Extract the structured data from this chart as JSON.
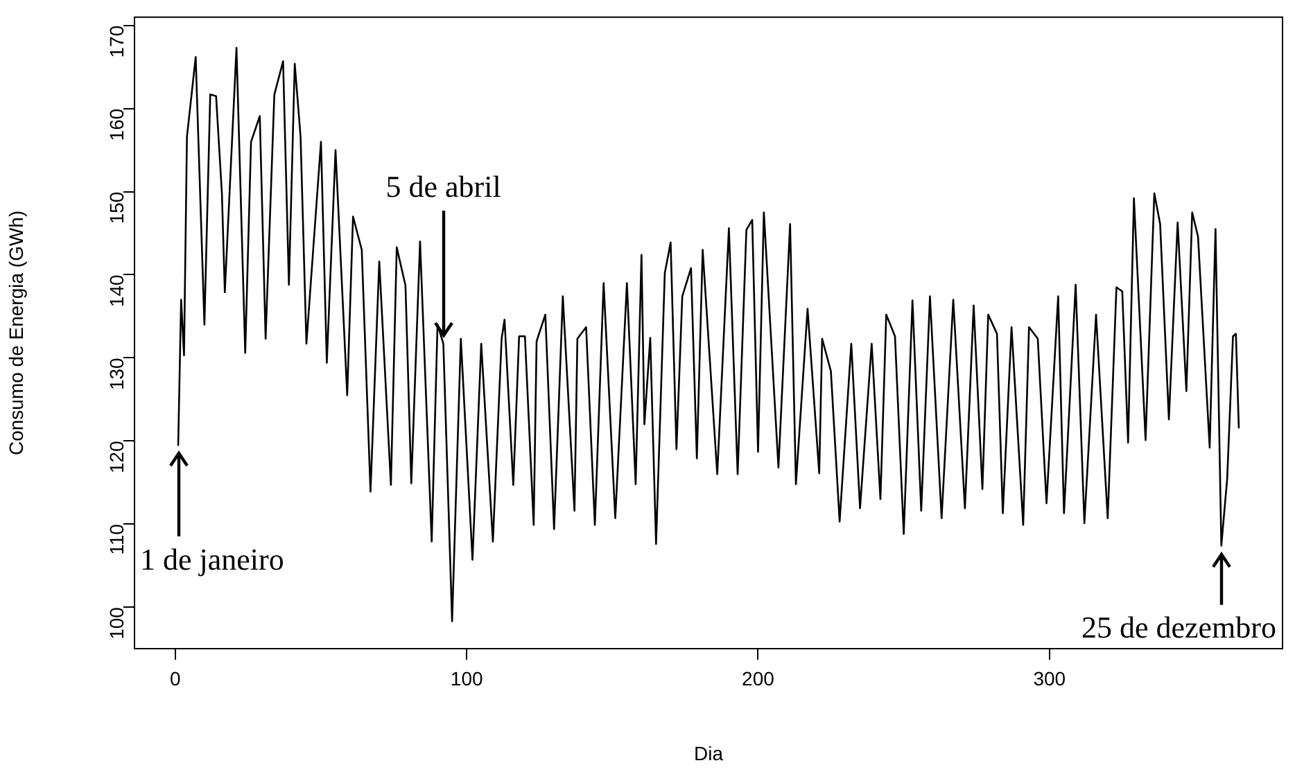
{
  "chart_data": {
    "type": "line",
    "xlabel": "Dia",
    "ylabel": "Consumo de Energia (GWh)",
    "xlim": [
      -14,
      380
    ],
    "xticks": [
      0,
      100,
      200,
      300
    ],
    "ylim": [
      95,
      171
    ],
    "yticks": [
      100,
      110,
      120,
      130,
      140,
      150,
      160,
      170
    ],
    "grid": false,
    "legend": false,
    "marker": "none",
    "line_style": "solid",
    "series": [
      {
        "color": "#000000",
        "x": [
          1,
          2,
          3,
          4,
          7,
          10,
          12,
          14,
          16,
          17,
          21,
          24,
          26,
          29,
          31,
          34,
          37,
          39,
          41,
          43,
          45,
          50,
          52,
          55,
          59,
          61,
          64,
          67,
          70,
          74,
          76,
          79,
          81,
          84,
          88,
          90,
          92,
          95,
          98,
          102,
          105,
          109,
          112,
          113,
          116,
          118,
          120,
          123,
          124,
          127,
          130,
          133,
          137,
          138,
          141,
          144,
          147,
          151,
          155,
          158,
          160,
          161,
          163,
          165,
          168,
          170,
          172,
          174,
          177,
          179,
          181,
          186,
          190,
          193,
          196,
          198,
          200,
          202,
          207,
          211,
          213,
          217,
          221,
          222,
          225,
          228,
          232,
          235,
          239,
          242,
          244,
          247,
          250,
          253,
          256,
          259,
          263,
          267,
          271,
          274,
          277,
          279,
          282,
          284,
          287,
          291,
          293,
          296,
          299,
          303,
          305,
          309,
          312,
          316,
          320,
          323,
          325,
          327,
          329,
          333,
          336,
          338,
          341,
          344,
          347,
          349,
          351,
          355,
          357,
          359,
          361,
          363,
          364,
          365
        ],
        "values": [
          119.5,
          137,
          130.3,
          156.6,
          166.2,
          134,
          161.7,
          161.5,
          149.8,
          137.9,
          167.3,
          130.6,
          156,
          159.1,
          132.3,
          161.7,
          165.7,
          138.8,
          165.4,
          156.6,
          131.7,
          156,
          129.4,
          155,
          125.5,
          147,
          143,
          113.9,
          141.6,
          114.7,
          143.3,
          138.7,
          114.9,
          144,
          107.9,
          134,
          131.7,
          98.3,
          132.3,
          105.7,
          131.7,
          107.9,
          132.3,
          134.6,
          114.7,
          132.6,
          132.6,
          109.9,
          132,
          135.2,
          109.4,
          137.4,
          111.6,
          132.3,
          133.7,
          109.9,
          139,
          110.7,
          139,
          114.8,
          142.4,
          122,
          132.4,
          107.6,
          140.2,
          143.9,
          119,
          137.4,
          140.8,
          117.9,
          143,
          116,
          145.6,
          116,
          145.4,
          146.6,
          118.7,
          147.5,
          116.8,
          146.1,
          114.8,
          135.9,
          116.1,
          132.3,
          128.4,
          110.3,
          131.7,
          111.9,
          131.7,
          113,
          135.2,
          132.6,
          108.8,
          136.9,
          111.6,
          137.4,
          110.7,
          137,
          111.9,
          136.3,
          114.2,
          135.2,
          132.9,
          111.3,
          133.7,
          109.9,
          133.7,
          132.3,
          112.5,
          137.4,
          111.3,
          138.8,
          110.1,
          135.2,
          110.7,
          138.5,
          138,
          119.8,
          149.2,
          120.1,
          149.8,
          146.1,
          122.6,
          146.3,
          126,
          147.5,
          144.6,
          119.2,
          145.5,
          107.4,
          115.4,
          132.6,
          132.9,
          121.6
        ]
      }
    ],
    "annotations": [
      {
        "text": "1 de janeiro",
        "x": 1,
        "y": 119.5
      },
      {
        "text": "5 de abril",
        "x": 92,
        "y": 131.7
      },
      {
        "text": "25 de dezembro",
        "x": 359,
        "y": 107.4
      }
    ]
  }
}
